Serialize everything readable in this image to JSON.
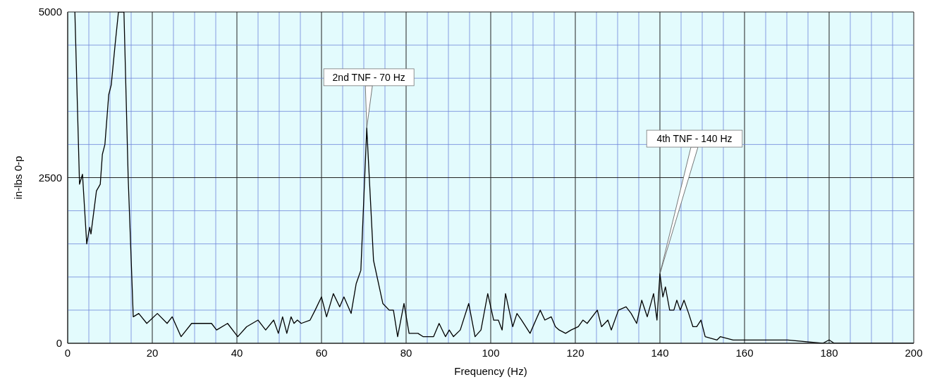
{
  "chart_data": {
    "type": "line",
    "xlabel": "Frequency (Hz)",
    "ylabel": "in-lbs 0-p",
    "x": [
      1.7,
      2.8,
      3.5,
      4.5,
      5.2,
      5.5,
      6.8,
      7.7,
      8.2,
      8.8,
      9.7,
      10.3,
      11.2,
      12,
      13.3,
      14.3,
      15.5,
      16.8,
      18.7,
      21.2,
      23.5,
      24.7,
      26.8,
      29.3,
      32.3,
      34,
      35.2,
      37.8,
      40.2,
      42.3,
      45,
      46.8,
      48.7,
      49.8,
      50.8,
      51.8,
      52.8,
      53.5,
      54.3,
      55.2,
      57.3,
      58.5,
      60,
      61.2,
      62.8,
      64.3,
      65.3,
      67,
      68.2,
      69.3,
      70.7,
      72.3,
      74.5,
      76,
      77,
      78,
      79.5,
      80.7,
      82.8,
      84,
      86.5,
      87.8,
      89.3,
      90.2,
      91.2,
      92.8,
      94.8,
      96.3,
      97.7,
      99.3,
      100.7,
      101.8,
      102.7,
      103.5,
      105.2,
      106.2,
      107.3,
      109.3,
      111.7,
      112.8,
      114.3,
      115.3,
      116.2,
      117.7,
      119,
      120.7,
      121.8,
      122.8,
      125.2,
      126.2,
      127.7,
      128.5,
      130.2,
      132,
      133.2,
      134.5,
      135.7,
      137,
      138.5,
      139.3,
      140,
      140.7,
      141.3,
      142.3,
      143.3,
      144,
      144.8,
      145.7,
      146.8,
      147.8,
      148.7,
      149.7,
      150.7,
      153.5,
      154.3,
      157.3,
      161.8,
      170.2,
      178.5,
      180,
      181.2,
      184,
      200
    ],
    "series": [
      {
        "color": "#000000",
        "values": [
          5000,
          2400,
          2550,
          1500,
          1750,
          1650,
          2300,
          2400,
          2850,
          3000,
          3750,
          3900,
          4500,
          5000,
          5000,
          2500,
          400,
          450,
          300,
          450,
          300,
          400,
          100,
          300,
          300,
          300,
          200,
          300,
          100,
          250,
          350,
          200,
          350,
          150,
          400,
          150,
          400,
          300,
          350,
          300,
          350,
          500,
          700,
          400,
          750,
          550,
          700,
          450,
          900,
          1100,
          3250,
          1250,
          600,
          500,
          500,
          100,
          600,
          150,
          150,
          100,
          100,
          300,
          100,
          200,
          100,
          200,
          600,
          100,
          200,
          750,
          350,
          350,
          200,
          750,
          250,
          450,
          350,
          150,
          500,
          350,
          400,
          250,
          200,
          150,
          200,
          250,
          350,
          300,
          500,
          250,
          350,
          200,
          500,
          550,
          450,
          300,
          650,
          400,
          750,
          350,
          1050,
          700,
          850,
          500,
          500,
          650,
          500,
          650,
          450,
          250,
          250,
          350,
          100,
          50,
          100,
          50,
          50,
          50,
          0,
          50,
          0,
          0,
          0
        ]
      }
    ],
    "xlim": [
      0,
      200
    ],
    "xticks": [
      0,
      {
        "value": 5,
        "label": null
      },
      {
        "value": 10,
        "label": null
      },
      {
        "value": 15,
        "label": null
      },
      20,
      {
        "value": 25,
        "label": null
      },
      {
        "value": 30,
        "label": null
      },
      {
        "value": 35,
        "label": null
      },
      40,
      {
        "value": 45,
        "label": null
      },
      {
        "value": 50,
        "label": null
      },
      {
        "value": 55,
        "label": null
      },
      60,
      {
        "value": 65,
        "label": null
      },
      {
        "value": 70,
        "label": null
      },
      {
        "value": 75,
        "label": null
      },
      80,
      {
        "value": 85,
        "label": null
      },
      {
        "value": 90,
        "label": null
      },
      {
        "value": 95,
        "label": null
      },
      100,
      {
        "value": 105,
        "label": null
      },
      {
        "value": 110,
        "label": null
      },
      {
        "value": 115,
        "label": null
      },
      120,
      {
        "value": 125,
        "label": null
      },
      {
        "value": 130,
        "label": null
      },
      {
        "value": 135,
        "label": null
      },
      140,
      {
        "value": 145,
        "label": null
      },
      {
        "value": 150,
        "label": null
      },
      {
        "value": 155,
        "label": null
      },
      160,
      {
        "value": 165,
        "label": null
      },
      {
        "value": 170,
        "label": null
      },
      {
        "value": 175,
        "label": null
      },
      180,
      {
        "value": 185,
        "label": null
      },
      {
        "value": 190,
        "label": null
      },
      {
        "value": 195,
        "label": null
      },
      200
    ],
    "ylim": [
      0,
      5000
    ],
    "yticks": [
      0,
      {
        "value": 500,
        "label": null
      },
      {
        "value": 1000,
        "label": null
      },
      {
        "value": 1500,
        "label": null
      },
      {
        "value": 2000,
        "label": null
      },
      2500,
      {
        "value": 3000,
        "label": null
      },
      {
        "value": 3500,
        "label": null
      },
      {
        "value": 4000,
        "label": null
      },
      {
        "value": 4500,
        "label": null
      },
      5000
    ],
    "grid": true,
    "marker": "none",
    "line_style": "solid",
    "annotations": [
      {
        "text": "2nd TNF - 70 Hz",
        "x": 70.7,
        "y": 3250
      },
      {
        "text": "4th TNF - 140 Hz",
        "x": 140,
        "y": 1050
      }
    ]
  }
}
